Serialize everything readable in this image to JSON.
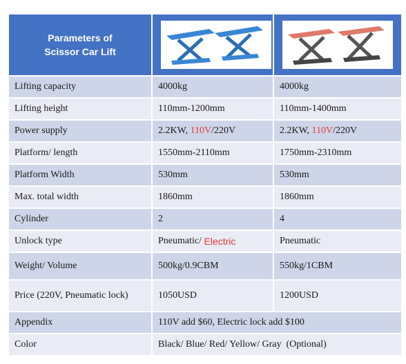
{
  "header": {
    "title_line1": "Parameters of",
    "title_line2": "Scissor Car Lift"
  },
  "products": [
    {
      "image": "blue-scissor-lift-icon",
      "color": "#3a86d4"
    },
    {
      "image": "gray-red-scissor-lift-icon",
      "color": "#555555",
      "accent": "#e07a6a"
    }
  ],
  "rows": [
    {
      "label": "Lifting capacity",
      "a": "4000kg",
      "b": "4000kg"
    },
    {
      "label": "Lifting height",
      "a": "110mm-1200mm",
      "b": "110mm-1400mm"
    },
    {
      "label": "Power supply",
      "a_pre": "2.2KW, ",
      "a_red": "110V",
      "a_post": "/220V",
      "b_pre": "2.2KW, ",
      "b_red": "110V",
      "b_post": "/220V"
    },
    {
      "label": "Platform/ length",
      "a": "1550mm-2110mm",
      "b": "1750mm-2310mm"
    },
    {
      "label": "Platform Width",
      "a": "530mm",
      "b": "530mm"
    },
    {
      "label": "Max. total width",
      "a": "1860mm",
      "b": "1860mm"
    },
    {
      "label": "Cylinder",
      "a": "2",
      "b": "4"
    },
    {
      "label": "Unlock type",
      "a_pre": "Pneumatic/ ",
      "a_red": "Electric",
      "b": "Pneumatic"
    },
    {
      "label": "Weight/ Volume",
      "a": "500kg/0.9CBM",
      "b": "550kg/1CBM"
    },
    {
      "label": "Price (220V, Pneumatic lock)",
      "a": "1050USD",
      "b": "1200USD"
    },
    {
      "label": "Appendix",
      "merged": "110V add $60, Electric lock add $100"
    },
    {
      "label": "Color",
      "merged": "Black/ Blue/ Red/ Yellow/ Gray  (Optional)"
    }
  ],
  "colors": {
    "header_bg": "#4472c4",
    "row_dark": "#cfd5e8",
    "row_light": "#e9ebf5",
    "highlight": "#e53935"
  }
}
